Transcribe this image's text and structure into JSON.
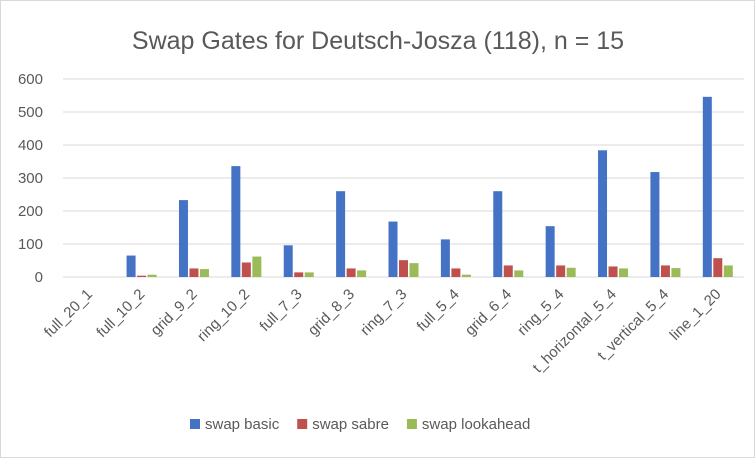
{
  "chart_data": {
    "type": "bar",
    "title": "Swap Gates for Deutsch-Josza (118), n = 15",
    "categories": [
      "full_20_1",
      "full_10_2",
      "grid_9_2",
      "ring_10_2",
      "full_7_3",
      "grid_8_3",
      "ring_7_3",
      "full_5_4",
      "grid_6_4",
      "ring_5_4",
      "t_horizontal_5_4",
      "t_vertical_5_4",
      "line_1_20"
    ],
    "series": [
      {
        "name": "swap basic",
        "color": "#4472c4",
        "values": [
          0,
          65,
          233,
          336,
          96,
          260,
          168,
          114,
          260,
          154,
          384,
          318,
          546
        ]
      },
      {
        "name": "swap sabre",
        "color": "#c0504d",
        "values": [
          0,
          4,
          26,
          44,
          14,
          26,
          51,
          26,
          35,
          35,
          32,
          35,
          57
        ]
      },
      {
        "name": "swap lookahead",
        "color": "#9bbb59",
        "values": [
          0,
          7,
          24,
          62,
          14,
          20,
          42,
          7,
          20,
          28,
          26,
          27,
          35
        ]
      }
    ],
    "ylim": [
      0,
      600
    ],
    "yticks": [
      0,
      100,
      200,
      300,
      400,
      500,
      600
    ],
    "grid": true,
    "legend": "bottom"
  }
}
